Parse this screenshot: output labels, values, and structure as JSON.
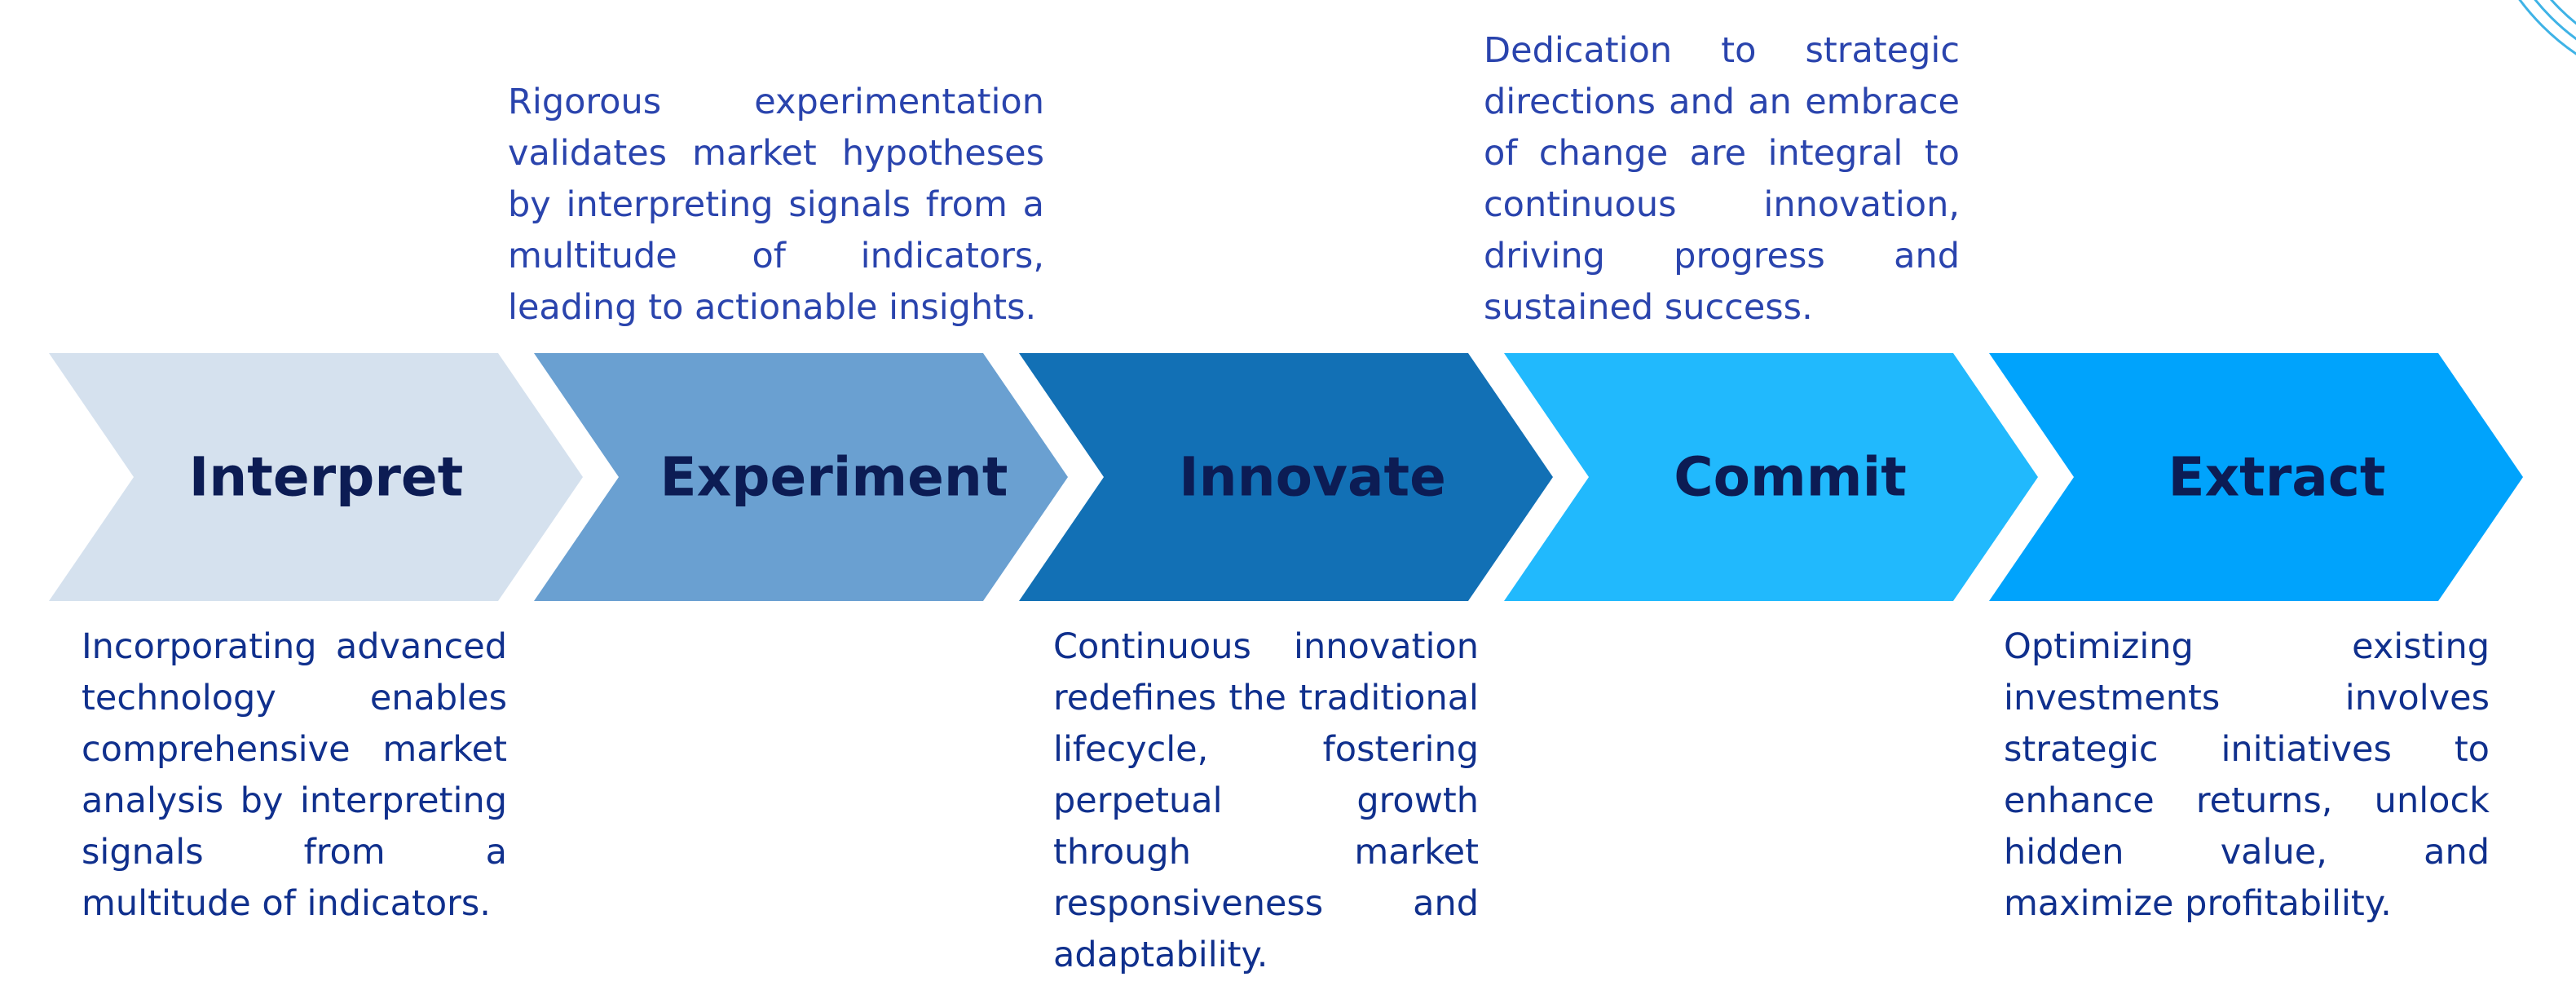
{
  "steps": [
    {
      "label": "Interpret",
      "fill": "#d5e1ee",
      "text_color": "#0c1c54",
      "description": "Incorporating advanced technology enables comprehensive market analysis by interpreting signals from a multitude of indicators.",
      "description_position": "below"
    },
    {
      "label": "Experiment",
      "fill": "#6aa0d1",
      "text_color": "#0c1c54",
      "description": "Rigorous experimentation validates market hypotheses by interpreting signals from a multitude of indicators, leading to actionable insights.",
      "description_position": "above"
    },
    {
      "label": "Innovate",
      "fill": "#1270b5",
      "text_color": "#0c1c54",
      "description": "Continuous innovation redefines the traditional lifecycle, fostering perpetual growth through market responsiveness and adaptability.",
      "description_position": "below"
    },
    {
      "label": "Commit",
      "fill": "#21b9fd",
      "text_color": "#0c1c54",
      "description": "Dedication to strategic directions and an embrace of change are integral to continuous innovation, driving progress and sustained success.",
      "description_position": "above"
    },
    {
      "label": "Extract",
      "fill": "#00a3fc",
      "text_color": "#0c1c54",
      "description": "Optimizing existing investments involves strategic initiatives to enhance returns, unlock hidden value, and maximize profitability.",
      "description_position": "below"
    }
  ],
  "decoration": {
    "stroke_color": "#3fb3e6"
  }
}
